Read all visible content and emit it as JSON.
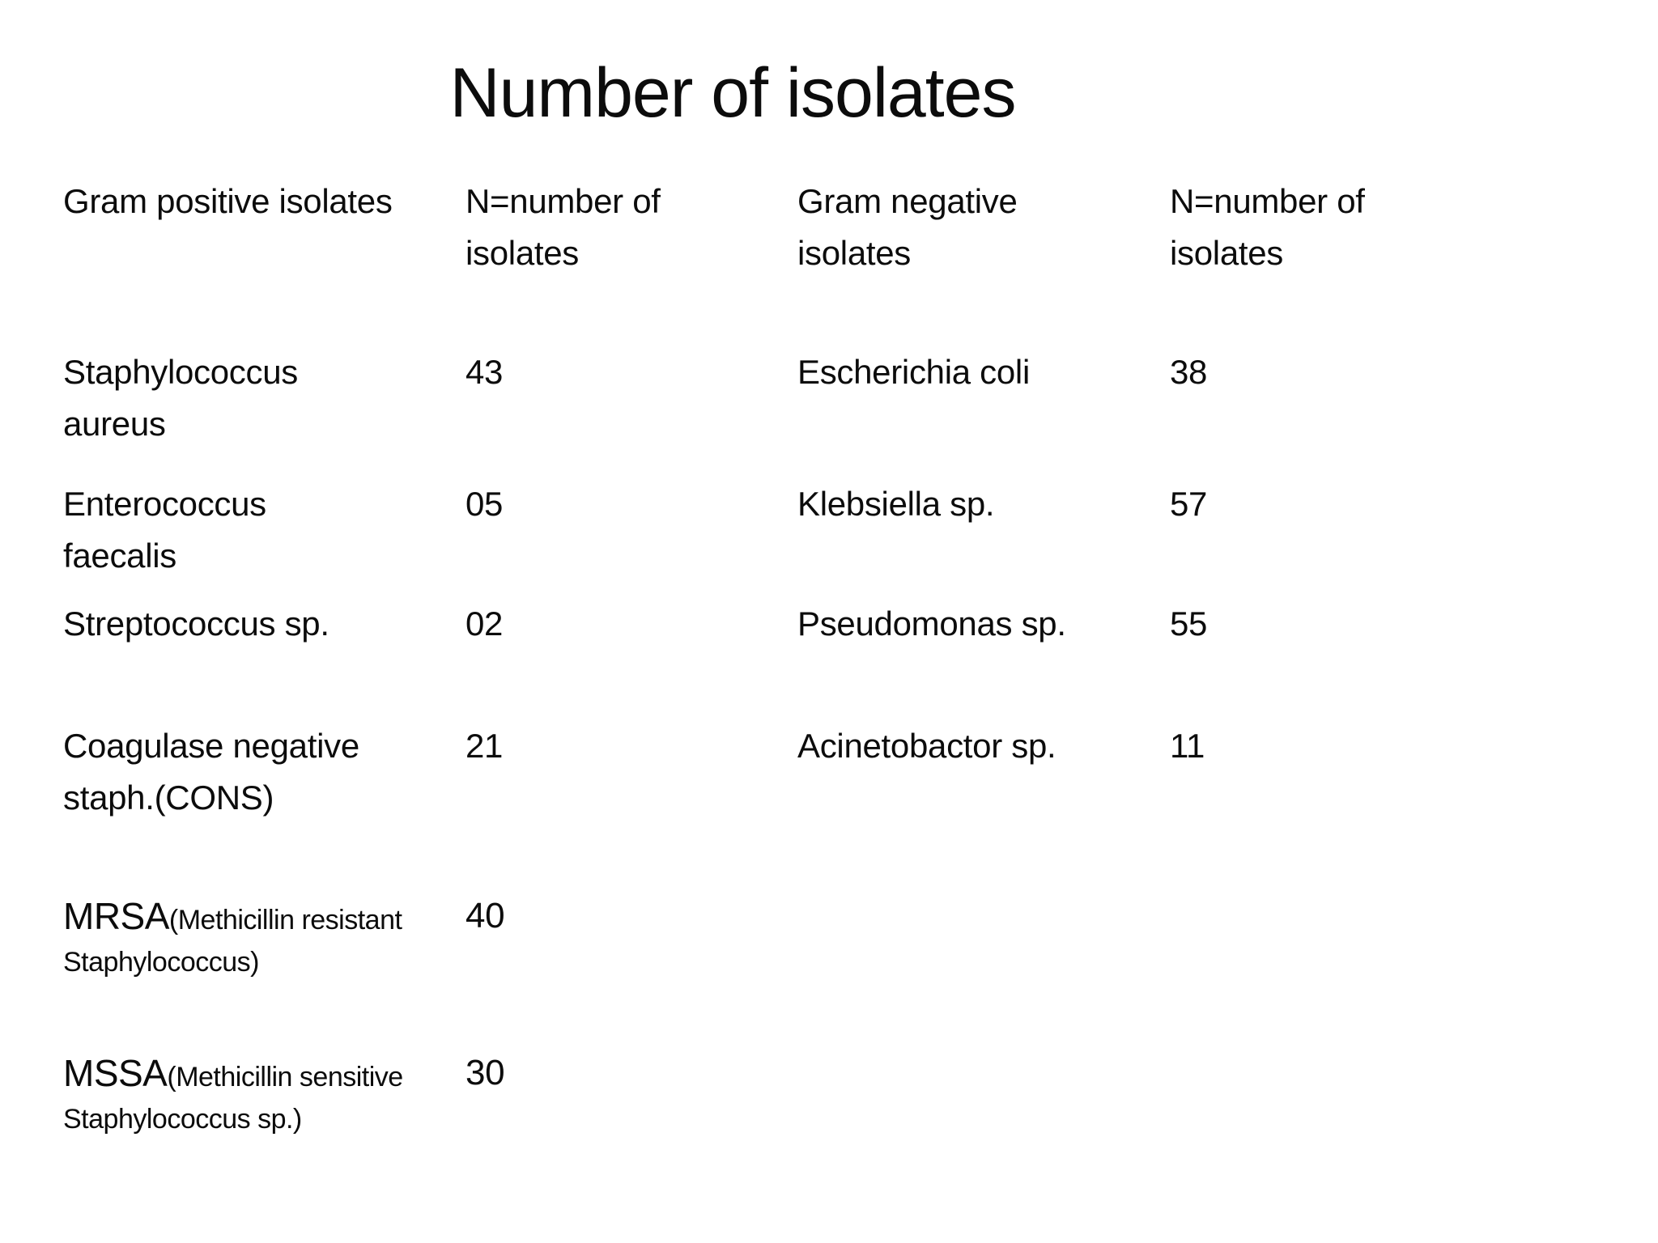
{
  "slide": {
    "title": "Number of isolates"
  },
  "table": {
    "col_headers": [
      "Gram positive isolates",
      "N=number of\nisolates",
      "Gram negative\nisolates",
      "N=number of\nisolates"
    ],
    "gram_positive_rows": [
      {
        "name": "Staphylococcus\naureus",
        "count": "43"
      },
      {
        "name": "Enterococcus\nfaecalis",
        "count": "05"
      },
      {
        "name": "Streptococcus sp.",
        "count": "02"
      },
      {
        "name": "Coagulase negative\nstaph.(CONS)",
        "count": "21"
      },
      {
        "name_main": "MRSA",
        "name_sub": "(Methicillin resistant\nStaphylococcus)",
        "count": "40"
      },
      {
        "name_main": "MSSA",
        "name_sub": "(Methicillin sensitive\nStaphylococcus sp.)",
        "count": "30"
      }
    ],
    "gram_negative_rows": [
      {
        "name": "Escherichia coli",
        "count": "38"
      },
      {
        "name": "Klebsiella sp.",
        "count": "57"
      },
      {
        "name": "Pseudomonas sp.",
        "count": "55"
      },
      {
        "name": "Acinetobactor sp.",
        "count": "11"
      }
    ]
  }
}
